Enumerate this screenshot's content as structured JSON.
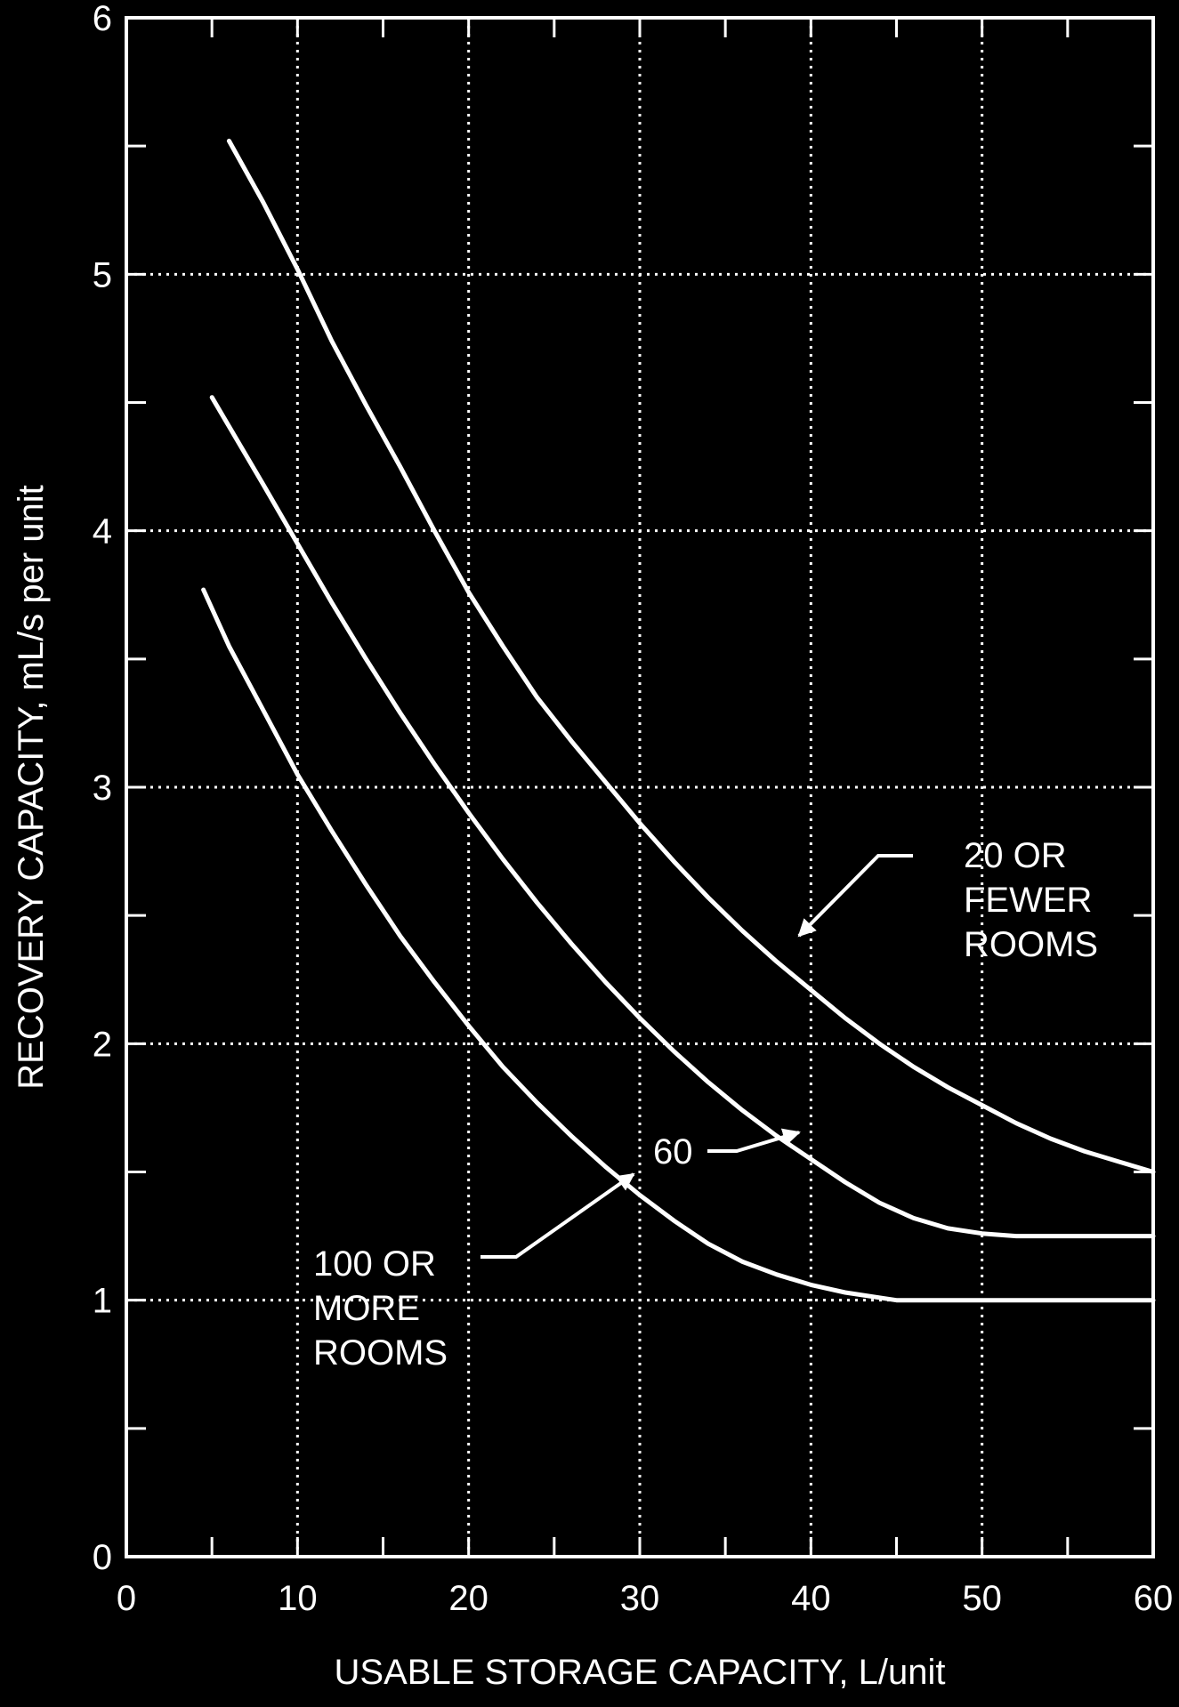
{
  "chart_data": {
    "type": "line",
    "title": "",
    "xlabel": "USABLE STORAGE CAPACITY, L/unit",
    "ylabel": "RECOVERY CAPACITY, mL/s per unit",
    "xlim": [
      0,
      60
    ],
    "ylim": [
      0,
      6
    ],
    "x_ticks": [
      0,
      10,
      20,
      30,
      40,
      50,
      60
    ],
    "y_ticks": [
      0,
      1,
      2,
      3,
      4,
      5,
      6
    ],
    "grid": true,
    "series": [
      {
        "name": "20 OR FEWER ROOMS",
        "x": [
          6,
          8,
          10,
          12,
          14,
          16,
          18,
          20,
          22,
          24,
          26,
          28,
          30,
          32,
          34,
          36,
          38,
          40,
          42,
          44,
          46,
          48,
          50,
          52,
          54,
          56,
          58,
          60
        ],
        "y": [
          5.52,
          5.28,
          5.02,
          4.74,
          4.49,
          4.25,
          4.0,
          3.76,
          3.55,
          3.35,
          3.18,
          3.02,
          2.86,
          2.71,
          2.57,
          2.44,
          2.32,
          2.21,
          2.1,
          2.0,
          1.91,
          1.83,
          1.76,
          1.69,
          1.63,
          1.58,
          1.54,
          1.5
        ]
      },
      {
        "name": "60",
        "x": [
          5,
          8,
          10,
          12,
          14,
          16,
          18,
          20,
          22,
          24,
          26,
          28,
          30,
          32,
          34,
          36,
          38,
          40,
          42,
          44,
          46,
          48,
          50,
          52,
          54,
          56,
          58,
          60
        ],
        "y": [
          4.52,
          4.18,
          3.95,
          3.72,
          3.5,
          3.29,
          3.09,
          2.9,
          2.72,
          2.55,
          2.39,
          2.24,
          2.1,
          1.97,
          1.85,
          1.74,
          1.64,
          1.55,
          1.46,
          1.38,
          1.32,
          1.28,
          1.26,
          1.25,
          1.25,
          1.25,
          1.25,
          1.25
        ]
      },
      {
        "name": "100 OR MORE ROOMS",
        "x": [
          4.5,
          6,
          8,
          10,
          12,
          14,
          16,
          18,
          20,
          22,
          24,
          26,
          28,
          30,
          32,
          34,
          36,
          38,
          40,
          42,
          44,
          45,
          50,
          55,
          60
        ],
        "y": [
          3.77,
          3.55,
          3.3,
          3.05,
          2.83,
          2.62,
          2.42,
          2.24,
          2.07,
          1.91,
          1.77,
          1.64,
          1.52,
          1.41,
          1.31,
          1.22,
          1.15,
          1.1,
          1.06,
          1.03,
          1.01,
          1.0,
          1.0,
          1.0,
          1.0
        ]
      }
    ],
    "annotations": [
      {
        "lines": [
          "20 OR",
          "FEWER",
          "ROOMS"
        ],
        "series": "20 OR FEWER ROOMS"
      },
      {
        "lines": [
          "60"
        ],
        "series": "60"
      },
      {
        "lines": [
          "100 OR",
          "MORE",
          "ROOMS"
        ],
        "series": "100 OR MORE ROOMS"
      }
    ],
    "colors": {
      "background": "#000000",
      "foreground": "#ffffff"
    }
  }
}
